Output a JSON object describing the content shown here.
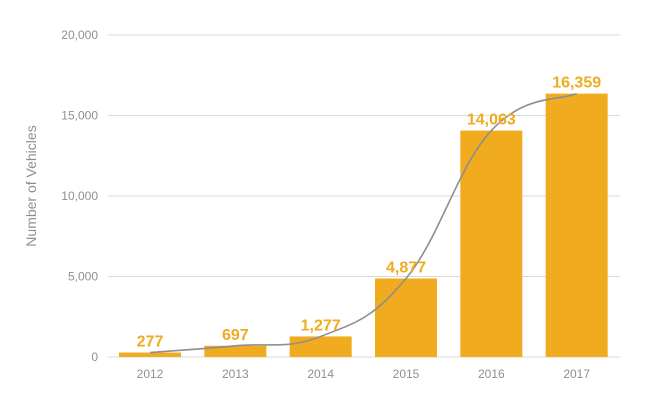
{
  "chart_data": {
    "type": "bar",
    "categories": [
      "2012",
      "2013",
      "2014",
      "2015",
      "2016",
      "2017"
    ],
    "series": [
      {
        "values": [
          277,
          697,
          1277,
          4877,
          14063,
          16359
        ],
        "data_labels": [
          "277",
          "697",
          "1,277",
          "4,877",
          "14,063",
          "16,359"
        ],
        "color": "#f0ab1e"
      }
    ],
    "trend_line": {
      "type": "smooth-line",
      "color": "#8e8e8e",
      "values": [
        277,
        697,
        1277,
        4877,
        14063,
        16359
      ]
    },
    "title": "",
    "xlabel": "",
    "ylabel": "Number of Vehicles",
    "ylim": [
      0,
      20000
    ],
    "yticks": [
      0,
      5000,
      10000,
      15000,
      20000
    ],
    "ytick_labels": [
      "0",
      "5,000",
      "10,000",
      "15,000",
      "20,000"
    ],
    "grid": "horizontal",
    "legend": "none",
    "gridline_color": "#d9d9d9"
  }
}
